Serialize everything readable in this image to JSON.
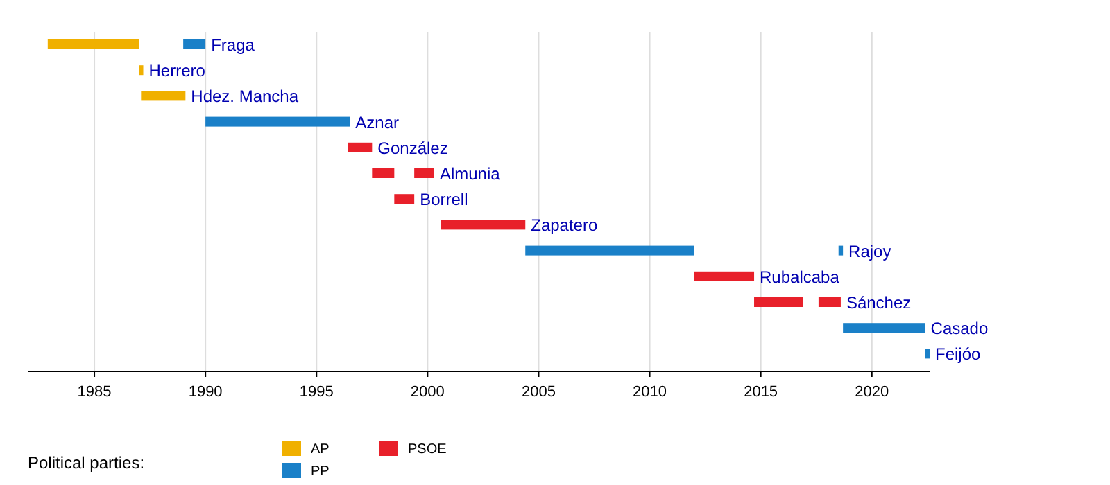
{
  "chart_data": {
    "type": "bar",
    "orientation": "horizontal",
    "legend_title": "Political parties:",
    "legend": "bottom",
    "grid": "x",
    "categories": [
      "Fraga",
      "Herrero",
      "Hdez. Mancha",
      "Aznar",
      "González",
      "Almunia",
      "Borrell",
      "Zapatero",
      "Rajoy",
      "Rubalcaba",
      "Sánchez",
      "Casado",
      "Feijóo"
    ],
    "xlim": [
      1982,
      2022.6
    ],
    "xticks": [
      1985,
      1990,
      1995,
      2000,
      2005,
      2010,
      2015,
      2020
    ],
    "series": [
      {
        "name": "AP",
        "color": "#f0b000",
        "base": [
          1982.9,
          1987.0,
          1987.1,
          null,
          null,
          null,
          null,
          null,
          null,
          null,
          null,
          null,
          null
        ],
        "values": [
          4.1,
          0.2,
          2.0,
          null,
          null,
          null,
          null,
          null,
          null,
          null,
          null,
          null,
          null
        ]
      },
      {
        "name": "PP",
        "color": "#1a80c8",
        "base": [
          1989.0,
          null,
          null,
          1990.0,
          null,
          null,
          null,
          null,
          2004.4,
          null,
          null,
          2018.7,
          2022.4
        ],
        "values": [
          1.0,
          null,
          null,
          6.5,
          null,
          null,
          null,
          null,
          7.6,
          null,
          null,
          3.7,
          0.2
        ]
      },
      {
        "name": "PSOE",
        "color": "#e8202a",
        "base": [
          null,
          null,
          null,
          null,
          1996.4,
          1997.5,
          1998.5,
          2000.6,
          null,
          2012.0,
          2014.7,
          null,
          null
        ],
        "values": [
          null,
          null,
          null,
          null,
          1.1,
          1.0,
          0.9,
          3.8,
          null,
          2.7,
          2.2,
          null,
          null
        ]
      },
      {
        "color": "#1a80c8",
        "base": [
          null,
          null,
          null,
          null,
          null,
          null,
          null,
          null,
          2018.5,
          null,
          null,
          null,
          null
        ],
        "values": [
          null,
          null,
          null,
          null,
          null,
          null,
          null,
          null,
          0.2,
          null,
          null,
          null,
          null
        ]
      },
      {
        "color": "#e8202a",
        "base": [
          null,
          null,
          null,
          null,
          null,
          1999.4,
          null,
          null,
          null,
          null,
          2017.6,
          null,
          null
        ],
        "values": [
          null,
          null,
          null,
          null,
          null,
          0.9,
          null,
          null,
          null,
          null,
          1.0,
          null,
          null
        ]
      }
    ]
  }
}
